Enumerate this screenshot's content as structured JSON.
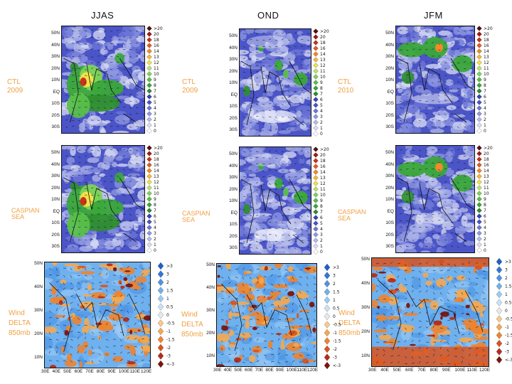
{
  "columns": [
    {
      "title": "JJAS",
      "labels": [
        "CTL",
        "2009",
        "CASPIAN",
        "SEA",
        "Wind",
        "DELTA",
        "850mb"
      ]
    },
    {
      "title": "OND",
      "labels": [
        "CTL",
        "2009",
        "CASPIAN",
        "SEA",
        "Wind",
        "DELTA",
        "850mb"
      ]
    },
    {
      "title": "JFM",
      "labels": [
        "CTL",
        "2010",
        "CASPIAN",
        "SEA",
        "Wind",
        "DELTA",
        "850mb"
      ]
    }
  ],
  "precip_lat_ticks": [
    "50N",
    "40N",
    "30N",
    "20N",
    "10N",
    "EQ",
    "10S",
    "20S",
    "30S"
  ],
  "wind_lat_ticks": [
    "50N",
    "40N",
    "30N",
    "20N",
    "10N"
  ],
  "wind_lon_ticks": [
    "30E",
    "40E",
    "50E",
    "60E",
    "70E",
    "80E",
    "90E",
    "100E",
    "110E",
    "120E"
  ],
  "precip_legend": [
    ">20",
    "20",
    "18",
    "16",
    "14",
    "13",
    "12",
    "11",
    "10",
    "9",
    "8",
    "7",
    "6",
    "5",
    "4",
    "3",
    "2",
    "1",
    "0"
  ],
  "wind_legend": [
    ">3",
    "3",
    "2",
    "1.5",
    "1",
    "0.5",
    "0",
    "-0.5",
    "-1",
    "-1.5",
    "-2",
    "-3",
    "<-3"
  ],
  "colors": {
    "label_orange": "#f0a042",
    "precip_scale": [
      "#ffffff",
      "#d8dcf4",
      "#b4bbec",
      "#8f98e2",
      "#6d77d8",
      "#4b55c8",
      "#3b44b8",
      "#2e8f2e",
      "#3aa83a",
      "#58c04a",
      "#7fd35a",
      "#b9e46a",
      "#f2e24a",
      "#f7b93a",
      "#f08a2a",
      "#e25d22",
      "#c8331c",
      "#9e1c16",
      "#5a0e0c"
    ],
    "wind_scale": [
      "#1d5fc9",
      "#2f77d8",
      "#4b93e4",
      "#6fb0ee",
      "#9bcaf4",
      "#c8e2f8",
      "#e8e8e8",
      "#f7c98a",
      "#f4a850",
      "#ec8430",
      "#d9531e",
      "#b52c16",
      "#7a140e"
    ]
  },
  "chart_data": [
    {
      "type": "heatmap",
      "title": "JJAS",
      "row": "CTL 2009",
      "variable": "precipitation",
      "legend": [
        ">20",
        "20",
        "18",
        "16",
        "14",
        "13",
        "12",
        "11",
        "10",
        "9",
        "8",
        "7",
        "6",
        "5",
        "4",
        "3",
        "2",
        "1",
        "0"
      ],
      "xlim": [
        30,
        120
      ],
      "ylim": [
        -30,
        50
      ],
      "pattern": "monsoon-india"
    },
    {
      "type": "heatmap",
      "title": "OND",
      "row": "CTL 2009",
      "variable": "precipitation",
      "legend": [
        ">20",
        "20",
        "18",
        "16",
        "14",
        "13",
        "12",
        "11",
        "10",
        "9",
        "8",
        "7",
        "6",
        "5",
        "4",
        "3",
        "2",
        "1",
        "0"
      ],
      "xlim": [
        30,
        120
      ],
      "ylim": [
        -30,
        50
      ],
      "pattern": "ond"
    },
    {
      "type": "heatmap",
      "title": "JFM",
      "row": "CTL 2010",
      "variable": "precipitation",
      "legend": [
        ">20",
        "20",
        "18",
        "16",
        "14",
        "13",
        "12",
        "11",
        "10",
        "9",
        "8",
        "7",
        "6",
        "5",
        "4",
        "3",
        "2",
        "1",
        "0"
      ],
      "xlim": [
        30,
        120
      ],
      "ylim": [
        -30,
        50
      ],
      "pattern": "jfm"
    },
    {
      "type": "heatmap",
      "title": "JJAS",
      "row": "CASPIAN SEA",
      "variable": "precipitation",
      "xlim": [
        30,
        120
      ],
      "ylim": [
        -30,
        50
      ],
      "pattern": "monsoon-india"
    },
    {
      "type": "heatmap",
      "title": "OND",
      "row": "CASPIAN SEA",
      "variable": "precipitation",
      "xlim": [
        30,
        120
      ],
      "ylim": [
        -30,
        50
      ],
      "pattern": "ond"
    },
    {
      "type": "heatmap",
      "title": "JFM",
      "row": "CASPIAN SEA",
      "variable": "precipitation",
      "xlim": [
        30,
        120
      ],
      "ylim": [
        -30,
        50
      ],
      "pattern": "jfm"
    },
    {
      "type": "heatmap",
      "title": "JJAS",
      "row": "Wind DELTA 850mb",
      "variable": "wind difference",
      "legend": [
        ">3",
        "3",
        "2",
        "1.5",
        "1",
        "0.5",
        "0",
        "-0.5",
        "-1",
        "-1.5",
        "-2",
        "-3",
        "<-3"
      ],
      "xlim": [
        30,
        120
      ],
      "ylim": [
        5,
        50
      ]
    },
    {
      "type": "heatmap",
      "title": "OND",
      "row": "Wind DELTA 850mb",
      "variable": "wind difference",
      "legend": [
        ">3",
        "3",
        "2",
        "1.5",
        "1",
        "0.5",
        "0",
        "-0.5",
        "-1",
        "-1.5",
        "-2",
        "-3",
        "<-3"
      ],
      "xlim": [
        30,
        120
      ],
      "ylim": [
        5,
        50
      ]
    },
    {
      "type": "heatmap",
      "title": "JFM",
      "row": "Wind DELTA 850mb",
      "variable": "wind difference",
      "legend": [
        ">3",
        "3",
        "2",
        "1.5",
        "1",
        "0.5",
        "0",
        "-0.5",
        "-1",
        "-1.5",
        "-2",
        "-3",
        "<-3"
      ],
      "xlim": [
        30,
        120
      ],
      "ylim": [
        5,
        50
      ]
    }
  ]
}
